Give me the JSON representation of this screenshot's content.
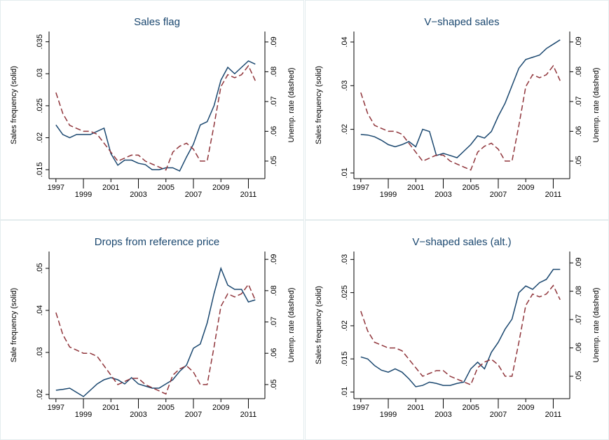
{
  "chart_data": [
    {
      "type": "line",
      "title": "Sales flag",
      "ylabel": "Sales frequency (solid)",
      "y2label": "Unemp. rate (dashed)",
      "x": [
        1997,
        1997.5,
        1998,
        1998.5,
        1999,
        1999.5,
        2000,
        2000.5,
        2001,
        2001.5,
        2002,
        2002.5,
        2003,
        2003.5,
        2004,
        2004.5,
        2005,
        2005.5,
        2006,
        2006.5,
        2007,
        2007.5,
        2008,
        2008.5,
        2009,
        2009.5,
        2010,
        2010.5,
        2011,
        2011.5
      ],
      "xlim": [
        1996.5,
        2012.2
      ],
      "xticks": [
        1997,
        1999,
        2001,
        2003,
        2005,
        2007,
        2009,
        2011
      ],
      "ylim": [
        0.0136,
        0.0366
      ],
      "yticks": [
        {
          "value": 0.015,
          "label": ".015"
        },
        {
          "value": 0.02,
          "label": ".02"
        },
        {
          "value": 0.025,
          "label": ".025"
        },
        {
          "value": 0.03,
          "label": ".03"
        },
        {
          "value": 0.035,
          "label": ".035"
        }
      ],
      "y2lim": [
        0.0441,
        0.0935
      ],
      "y2ticks": [
        {
          "value": 0.05,
          "label": ".05"
        },
        {
          "value": 0.06,
          "label": ".06"
        },
        {
          "value": 0.07,
          "label": ".07"
        },
        {
          "value": 0.08,
          "label": ".08"
        },
        {
          "value": 0.09,
          "label": ".09"
        }
      ],
      "series": [
        {
          "color": "#1a476f",
          "dash": false,
          "values": [
            0.022,
            0.0205,
            0.02,
            0.0205,
            0.0205,
            0.0205,
            0.021,
            0.0215,
            0.0175,
            0.0157,
            0.0165,
            0.0165,
            0.016,
            0.0158,
            0.015,
            0.015,
            0.0153,
            0.0153,
            0.0148,
            0.017,
            0.019,
            0.022,
            0.0225,
            0.025,
            0.029,
            0.031,
            0.03,
            0.031,
            0.032,
            0.0315
          ]
        },
        {
          "color": "#90353b",
          "dash": true,
          "axis": "y2",
          "values": [
            0.073,
            0.066,
            0.062,
            0.061,
            0.06,
            0.06,
            0.059,
            0.056,
            0.053,
            0.05,
            0.051,
            0.052,
            0.052,
            0.05,
            0.049,
            0.048,
            0.047,
            0.053,
            0.055,
            0.056,
            0.054,
            0.05,
            0.05,
            0.062,
            0.075,
            0.079,
            0.078,
            0.079,
            0.082,
            0.077
          ]
        }
      ]
    },
    {
      "type": "line",
      "title": "V−shaped sales",
      "ylabel": "Sales frequency (solid)",
      "y2label": "Unemp. rate (dashed)",
      "x": [
        1997,
        1997.5,
        1998,
        1998.5,
        1999,
        1999.5,
        2000,
        2000.5,
        2001,
        2001.5,
        2002,
        2002.5,
        2003,
        2003.5,
        2004,
        2004.5,
        2005,
        2005.5,
        2006,
        2006.5,
        2007,
        2007.5,
        2008,
        2008.5,
        2009,
        2009.5,
        2010,
        2010.5,
        2011,
        2011.5
      ],
      "xlim": [
        1996.5,
        2012.2
      ],
      "xticks": [
        1997,
        1999,
        2001,
        2003,
        2005,
        2007,
        2009,
        2011
      ],
      "ylim": [
        0.0087,
        0.0424
      ],
      "yticks": [
        {
          "value": 0.01,
          "label": ".01"
        },
        {
          "value": 0.02,
          "label": ".02"
        },
        {
          "value": 0.03,
          "label": ".03"
        },
        {
          "value": 0.04,
          "label": ".04"
        }
      ],
      "y2lim": [
        0.0441,
        0.0935
      ],
      "y2ticks": [
        {
          "value": 0.05,
          "label": ".05"
        },
        {
          "value": 0.06,
          "label": ".06"
        },
        {
          "value": 0.07,
          "label": ".07"
        },
        {
          "value": 0.08,
          "label": ".08"
        },
        {
          "value": 0.09,
          "label": ".09"
        }
      ],
      "series": [
        {
          "color": "#1a476f",
          "dash": false,
          "values": [
            0.0188,
            0.0187,
            0.0183,
            0.0175,
            0.0165,
            0.016,
            0.0165,
            0.0172,
            0.016,
            0.02,
            0.0195,
            0.014,
            0.0145,
            0.014,
            0.0135,
            0.015,
            0.0165,
            0.0185,
            0.018,
            0.0195,
            0.023,
            0.026,
            0.03,
            0.034,
            0.036,
            0.0365,
            0.037,
            0.0385,
            0.0395,
            0.0405
          ]
        },
        {
          "color": "#90353b",
          "dash": true,
          "axis": "y2",
          "values": [
            0.073,
            0.066,
            0.062,
            0.061,
            0.06,
            0.06,
            0.059,
            0.056,
            0.053,
            0.05,
            0.051,
            0.052,
            0.052,
            0.05,
            0.049,
            0.048,
            0.047,
            0.053,
            0.055,
            0.056,
            0.054,
            0.05,
            0.05,
            0.062,
            0.075,
            0.079,
            0.078,
            0.079,
            0.082,
            0.077
          ]
        }
      ]
    },
    {
      "type": "line",
      "title": "Drops from reference price",
      "ylabel": "Sale frequency (solid)",
      "y2label": "Unemp. rate (dashed)",
      "x": [
        1997,
        1997.5,
        1998,
        1998.5,
        1999,
        1999.5,
        2000,
        2000.5,
        2001,
        2001.5,
        2002,
        2002.5,
        2003,
        2003.5,
        2004,
        2004.5,
        2005,
        2005.5,
        2006,
        2006.5,
        2007,
        2007.5,
        2008,
        2008.5,
        2009,
        2009.5,
        2010,
        2010.5,
        2011,
        2011.5
      ],
      "xlim": [
        1996.5,
        2012.2
      ],
      "xticks": [
        1997,
        1999,
        2001,
        2003,
        2005,
        2007,
        2009,
        2011
      ],
      "ylim": [
        0.019,
        0.054
      ],
      "yticks": [
        {
          "value": 0.02,
          "label": ".02"
        },
        {
          "value": 0.03,
          "label": ".03"
        },
        {
          "value": 0.04,
          "label": ".04"
        },
        {
          "value": 0.05,
          "label": ".05"
        }
      ],
      "y2lim": [
        0.0455,
        0.0925
      ],
      "y2ticks": [
        {
          "value": 0.05,
          "label": ".05"
        },
        {
          "value": 0.06,
          "label": ".06"
        },
        {
          "value": 0.07,
          "label": ".07"
        },
        {
          "value": 0.08,
          "label": ".08"
        },
        {
          "value": 0.09,
          "label": ".09"
        }
      ],
      "series": [
        {
          "color": "#1a476f",
          "dash": false,
          "values": [
            0.021,
            0.0212,
            0.0215,
            0.0205,
            0.0195,
            0.021,
            0.0225,
            0.0235,
            0.024,
            0.0235,
            0.0225,
            0.024,
            0.0225,
            0.022,
            0.0215,
            0.0215,
            0.0225,
            0.0235,
            0.0255,
            0.027,
            0.031,
            0.032,
            0.037,
            0.044,
            0.05,
            0.046,
            0.045,
            0.045,
            0.042,
            0.0425
          ]
        },
        {
          "color": "#90353b",
          "dash": true,
          "axis": "y2",
          "values": [
            0.073,
            0.066,
            0.062,
            0.061,
            0.06,
            0.06,
            0.059,
            0.056,
            0.053,
            0.05,
            0.051,
            0.052,
            0.052,
            0.05,
            0.049,
            0.048,
            0.047,
            0.053,
            0.055,
            0.056,
            0.054,
            0.05,
            0.05,
            0.062,
            0.075,
            0.079,
            0.078,
            0.079,
            0.082,
            0.077
          ]
        }
      ]
    },
    {
      "type": "line",
      "title": "V−shaped sales (alt.)",
      "ylabel": "Sales frequency (solid)",
      "y2label": "Unemp. rate (dashed)",
      "x": [
        1997,
        1997.5,
        1998,
        1998.5,
        1999,
        1999.5,
        2000,
        2000.5,
        2001,
        2001.5,
        2002,
        2002.5,
        2003,
        2003.5,
        2004,
        2004.5,
        2005,
        2005.5,
        2006,
        2006.5,
        2007,
        2007.5,
        2008,
        2008.5,
        2009,
        2009.5,
        2010,
        2010.5,
        2011,
        2011.5
      ],
      "xlim": [
        1996.5,
        2012.2
      ],
      "xticks": [
        1997,
        1999,
        2001,
        2003,
        2005,
        2007,
        2009,
        2011
      ],
      "ylim": [
        0.009,
        0.0312
      ],
      "yticks": [
        {
          "value": 0.01,
          "label": ".01"
        },
        {
          "value": 0.015,
          "label": ".015"
        },
        {
          "value": 0.02,
          "label": ".02"
        },
        {
          "value": 0.025,
          "label": ".025"
        },
        {
          "value": 0.03,
          "label": ".03"
        }
      ],
      "y2lim": [
        0.0421,
        0.094
      ],
      "y2ticks": [
        {
          "value": 0.05,
          "label": ".05"
        },
        {
          "value": 0.06,
          "label": ".06"
        },
        {
          "value": 0.07,
          "label": ".07"
        },
        {
          "value": 0.08,
          "label": ".08"
        },
        {
          "value": 0.09,
          "label": ".09"
        }
      ],
      "series": [
        {
          "color": "#1a476f",
          "dash": false,
          "values": [
            0.0153,
            0.015,
            0.014,
            0.0133,
            0.013,
            0.0135,
            0.013,
            0.012,
            0.0108,
            0.011,
            0.0115,
            0.0113,
            0.011,
            0.011,
            0.0113,
            0.0115,
            0.0135,
            0.0145,
            0.0135,
            0.016,
            0.0175,
            0.0195,
            0.021,
            0.025,
            0.026,
            0.0255,
            0.0265,
            0.027,
            0.0285,
            0.0285
          ]
        },
        {
          "color": "#90353b",
          "dash": true,
          "axis": "y2",
          "values": [
            0.073,
            0.066,
            0.062,
            0.061,
            0.06,
            0.06,
            0.059,
            0.056,
            0.053,
            0.05,
            0.051,
            0.052,
            0.052,
            0.05,
            0.049,
            0.048,
            0.047,
            0.053,
            0.055,
            0.056,
            0.054,
            0.05,
            0.05,
            0.062,
            0.075,
            0.079,
            0.078,
            0.079,
            0.082,
            0.077
          ]
        }
      ]
    }
  ]
}
